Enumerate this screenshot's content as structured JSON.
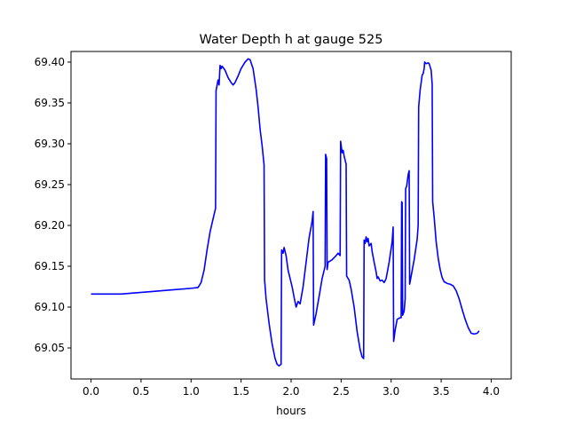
{
  "chart_data": {
    "type": "line",
    "title": "Water Depth h at gauge 525",
    "xlabel": "hours",
    "ylabel": "",
    "xlim": [
      -0.2,
      4.2
    ],
    "ylim": [
      69.012,
      69.413
    ],
    "xticks": [
      0.0,
      0.5,
      1.0,
      1.5,
      2.0,
      2.5,
      3.0,
      3.5,
      4.0
    ],
    "xtick_labels": [
      "0.0",
      "0.5",
      "1.0",
      "1.5",
      "2.0",
      "2.5",
      "3.0",
      "3.5",
      "4.0"
    ],
    "yticks": [
      69.05,
      69.1,
      69.15,
      69.2,
      69.25,
      69.3,
      69.35,
      69.4
    ],
    "ytick_labels": [
      "69.05",
      "69.10",
      "69.15",
      "69.20",
      "69.25",
      "69.30",
      "69.35",
      "69.40"
    ],
    "grid": false,
    "series": [
      {
        "name": "",
        "color": "#0000ff",
        "points": [
          [
            0.0,
            69.116
          ],
          [
            0.3,
            69.116
          ],
          [
            0.6,
            69.119
          ],
          [
            0.8,
            69.121
          ],
          [
            1.0,
            69.123
          ],
          [
            1.07,
            69.124
          ],
          [
            1.1,
            69.13
          ],
          [
            1.13,
            69.145
          ],
          [
            1.16,
            69.17
          ],
          [
            1.19,
            69.192
          ],
          [
            1.22,
            69.208
          ],
          [
            1.245,
            69.221
          ],
          [
            1.25,
            69.365
          ],
          [
            1.27,
            69.378
          ],
          [
            1.28,
            69.372
          ],
          [
            1.29,
            69.396
          ],
          [
            1.3,
            69.392
          ],
          [
            1.31,
            69.395
          ],
          [
            1.34,
            69.39
          ],
          [
            1.37,
            69.381
          ],
          [
            1.4,
            69.375
          ],
          [
            1.42,
            69.372
          ],
          [
            1.44,
            69.375
          ],
          [
            1.47,
            69.383
          ],
          [
            1.5,
            69.392
          ],
          [
            1.54,
            69.4
          ],
          [
            1.57,
            69.404
          ],
          [
            1.59,
            69.403
          ],
          [
            1.62,
            69.392
          ],
          [
            1.65,
            69.367
          ],
          [
            1.67,
            69.345
          ],
          [
            1.69,
            69.318
          ],
          [
            1.71,
            69.298
          ],
          [
            1.73,
            69.274
          ],
          [
            1.735,
            69.133
          ],
          [
            1.75,
            69.11
          ],
          [
            1.78,
            69.08
          ],
          [
            1.81,
            69.055
          ],
          [
            1.84,
            69.037
          ],
          [
            1.86,
            69.03
          ],
          [
            1.88,
            69.028
          ],
          [
            1.9,
            69.03
          ],
          [
            1.905,
            69.17
          ],
          [
            1.92,
            69.166
          ],
          [
            1.93,
            69.173
          ],
          [
            1.95,
            69.163
          ],
          [
            1.97,
            69.145
          ],
          [
            1.99,
            69.135
          ],
          [
            2.01,
            69.125
          ],
          [
            2.03,
            69.112
          ],
          [
            2.05,
            69.1
          ],
          [
            2.07,
            69.107
          ],
          [
            2.09,
            69.104
          ],
          [
            2.12,
            69.125
          ],
          [
            2.15,
            69.155
          ],
          [
            2.18,
            69.185
          ],
          [
            2.21,
            69.205
          ],
          [
            2.22,
            69.217
          ],
          [
            2.225,
            69.078
          ],
          [
            2.25,
            69.092
          ],
          [
            2.28,
            69.113
          ],
          [
            2.31,
            69.135
          ],
          [
            2.34,
            69.15
          ],
          [
            2.345,
            69.287
          ],
          [
            2.355,
            69.282
          ],
          [
            2.36,
            69.146
          ],
          [
            2.37,
            69.155
          ],
          [
            2.41,
            69.158
          ],
          [
            2.45,
            69.163
          ],
          [
            2.47,
            69.166
          ],
          [
            2.49,
            69.163
          ],
          [
            2.495,
            69.303
          ],
          [
            2.51,
            69.289
          ],
          [
            2.52,
            69.292
          ],
          [
            2.53,
            69.285
          ],
          [
            2.55,
            69.275
          ],
          [
            2.555,
            69.138
          ],
          [
            2.58,
            69.133
          ],
          [
            2.6,
            69.122
          ],
          [
            2.63,
            69.1
          ],
          [
            2.66,
            69.07
          ],
          [
            2.69,
            69.048
          ],
          [
            2.71,
            69.039
          ],
          [
            2.725,
            69.037
          ],
          [
            2.73,
            69.182
          ],
          [
            2.74,
            69.178
          ],
          [
            2.75,
            69.186
          ],
          [
            2.76,
            69.18
          ],
          [
            2.77,
            69.184
          ],
          [
            2.78,
            69.175
          ],
          [
            2.8,
            69.178
          ],
          [
            2.81,
            69.168
          ],
          [
            2.83,
            69.155
          ],
          [
            2.85,
            69.143
          ],
          [
            2.86,
            69.135
          ],
          [
            2.87,
            69.137
          ],
          [
            2.89,
            69.132
          ],
          [
            2.91,
            69.133
          ],
          [
            2.93,
            69.13
          ],
          [
            2.95,
            69.135
          ],
          [
            2.98,
            69.155
          ],
          [
            3.01,
            69.18
          ],
          [
            3.02,
            69.198
          ],
          [
            3.025,
            69.058
          ],
          [
            3.04,
            69.072
          ],
          [
            3.06,
            69.085
          ],
          [
            3.09,
            69.087
          ],
          [
            3.1,
            69.087
          ],
          [
            3.105,
            69.229
          ],
          [
            3.11,
            69.228
          ],
          [
            3.115,
            69.09
          ],
          [
            3.13,
            69.095
          ],
          [
            3.14,
            69.11
          ],
          [
            3.145,
            69.245
          ],
          [
            3.155,
            69.248
          ],
          [
            3.17,
            69.262
          ],
          [
            3.18,
            69.267
          ],
          [
            3.185,
            69.128
          ],
          [
            3.2,
            69.138
          ],
          [
            3.23,
            69.158
          ],
          [
            3.26,
            69.183
          ],
          [
            3.27,
            69.2
          ],
          [
            3.275,
            69.345
          ],
          [
            3.29,
            69.366
          ],
          [
            3.31,
            69.384
          ],
          [
            3.32,
            69.386
          ],
          [
            3.33,
            69.392
          ],
          [
            3.335,
            69.4
          ],
          [
            3.35,
            69.398
          ],
          [
            3.37,
            69.399
          ],
          [
            3.38,
            69.398
          ],
          [
            3.4,
            69.39
          ],
          [
            3.41,
            69.373
          ],
          [
            3.415,
            69.229
          ],
          [
            3.43,
            69.21
          ],
          [
            3.45,
            69.18
          ],
          [
            3.47,
            69.16
          ],
          [
            3.49,
            69.146
          ],
          [
            3.51,
            69.136
          ],
          [
            3.53,
            69.131
          ],
          [
            3.56,
            69.129
          ],
          [
            3.59,
            69.128
          ],
          [
            3.62,
            69.126
          ],
          [
            3.65,
            69.12
          ],
          [
            3.68,
            69.11
          ],
          [
            3.71,
            69.097
          ],
          [
            3.74,
            69.085
          ],
          [
            3.77,
            69.075
          ],
          [
            3.8,
            69.068
          ],
          [
            3.83,
            69.067
          ],
          [
            3.86,
            69.068
          ],
          [
            3.88,
            69.071
          ]
        ]
      }
    ]
  }
}
